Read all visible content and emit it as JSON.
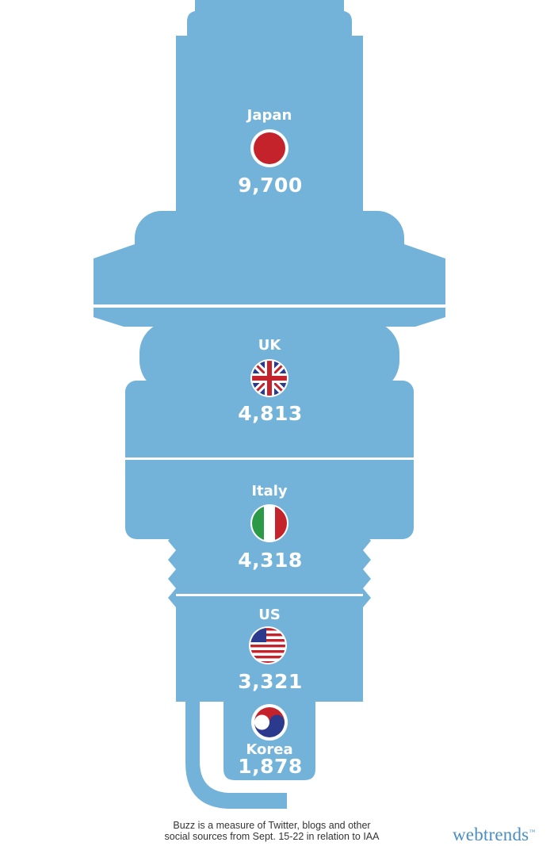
{
  "chart_data": {
    "type": "table",
    "rows": [
      {
        "country": "Japan",
        "value": "9,700"
      },
      {
        "country": "UK",
        "value": "4,813"
      },
      {
        "country": "Italy",
        "value": "4,318"
      },
      {
        "country": "US",
        "value": "3,321"
      },
      {
        "country": "Korea",
        "value": "1,878"
      }
    ]
  },
  "colors": {
    "plug": "#74b3d9",
    "divider": "#ffffff",
    "japan_red": "#c4232c",
    "uk_blue": "#2b3a8c",
    "uk_red": "#c4232c",
    "italy_green": "#2a9a46",
    "italy_red": "#c4232c",
    "us_red": "#c4232c",
    "us_blue": "#2b3a8c",
    "korea_red": "#c4232c",
    "korea_blue": "#2b3a8c"
  },
  "icons": [
    "japan-flag-icon",
    "uk-flag-icon",
    "italy-flag-icon",
    "us-flag-icon",
    "korea-flag-icon"
  ],
  "footer": {
    "caption_line1": "Buzz is a measure of Twitter, blogs and other",
    "caption_line2": "social sources from Sept. 15-22 in relation to IAA",
    "brand": "webtrends",
    "brand_mark": "™"
  }
}
